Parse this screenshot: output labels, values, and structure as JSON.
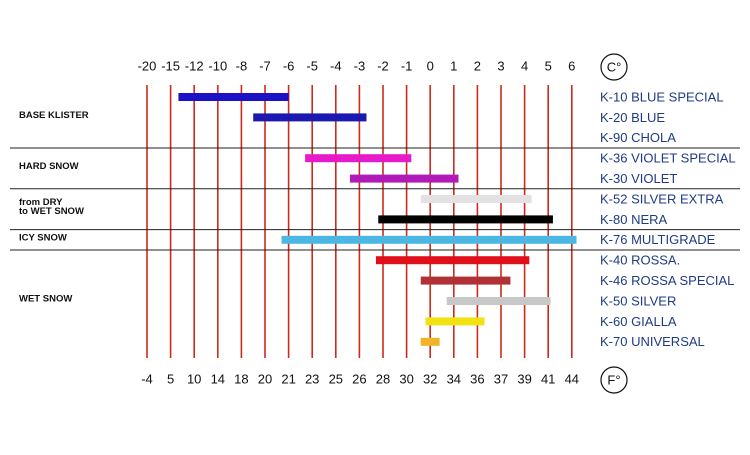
{
  "chart_data": {
    "type": "range_bar",
    "unit": "C°",
    "unit2": "F°",
    "xlim": [
      -20,
      6
    ],
    "xticks": [
      -20,
      -15,
      -12,
      -10,
      -8,
      -7,
      -6,
      -5,
      -4,
      -3,
      -2,
      -1,
      0,
      1,
      2,
      3,
      4,
      5,
      6
    ],
    "x2ticks": [
      -4,
      5,
      10,
      14,
      18,
      20,
      21,
      23,
      25,
      26,
      28,
      30,
      32,
      34,
      36,
      37,
      39,
      41,
      44
    ],
    "grid": true,
    "grid_color": "#cc2a1a",
    "groups": [
      {
        "label": [
          "BASE  KLISTER"
        ],
        "waxes": [
          {
            "name": "K-10  BLUE  SPECIAL",
            "color": "#1a12c4",
            "range": [
              -14,
              -6
            ]
          },
          {
            "name": "K-20  BLUE",
            "color": "#1a1ab0",
            "range": [
              -7.5,
              -2.7
            ]
          },
          {
            "name": "K-90  CHOLA",
            "color": "#000000",
            "range": null
          }
        ]
      },
      {
        "label": [
          "HARD  SNOW"
        ],
        "waxes": [
          {
            "name": "K-36  VIOLET  SPECIAL",
            "color": "#e61ac8",
            "range": [
              -5.3,
              -0.8
            ]
          },
          {
            "name": "K-30  VIOLET",
            "color": "#b01ab8",
            "range": [
              -3.4,
              1.2
            ]
          }
        ]
      },
      {
        "label": [
          "from  DRY",
          "to  WET  SNOW"
        ],
        "waxes": [
          {
            "name": "K-52  SILVER  EXTRA",
            "color": "#e2e2e2",
            "range": [
              -0.4,
              4.3
            ]
          },
          {
            "name": "K-80  NERA",
            "color": "#000000",
            "range": [
              -2.2,
              5.2
            ]
          }
        ]
      },
      {
        "label": [
          "ICY  SNOW"
        ],
        "waxes": [
          {
            "name": "K-76  MULTIGRADE",
            "color": "#4cb8e2",
            "range": [
              -6.3,
              6.2
            ]
          }
        ]
      },
      {
        "label": [
          "WET  SNOW"
        ],
        "waxes": [
          {
            "name": "K-40  ROSSA.",
            "color": "#e0101a",
            "range": [
              -2.3,
              4.2
            ]
          },
          {
            "name": "K-46  ROSSA  SPECIAL",
            "color": "#b03236",
            "range": [
              -0.4,
              3.4
            ]
          },
          {
            "name": "K-50  SILVER",
            "color": "#c8c8c8",
            "range": [
              0.7,
              5.1
            ]
          },
          {
            "name": "K-60  GIALLA",
            "color": "#f2e214",
            "range": [
              -0.2,
              2.3
            ]
          },
          {
            "name": "K-70  UNIVERSAL",
            "color": "#f0b424",
            "range": [
              -0.4,
              0.4
            ]
          }
        ]
      }
    ]
  }
}
